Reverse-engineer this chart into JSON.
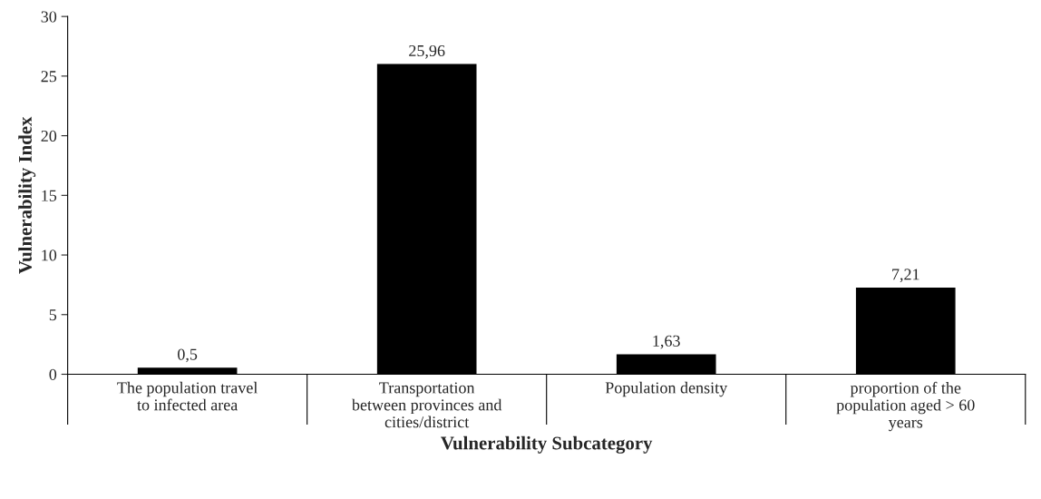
{
  "chart_data": {
    "type": "bar",
    "xlabel": "Vulnerability Subcategory",
    "ylabel": "Vulnerability Index",
    "categories": [
      "The population travel\nto infected area",
      "Transportation\nbetween provinces and\ncities/district",
      "Population density",
      "proportion of the\npopulation aged > 60\nyears"
    ],
    "values": [
      0.5,
      25.96,
      1.63,
      7.21
    ],
    "value_labels": [
      "0,5",
      "25,96",
      "1,63",
      "7,21"
    ],
    "color": "#000000",
    "ylim": [
      0,
      30
    ],
    "yticks": [
      0,
      5,
      10,
      15,
      20,
      25,
      30
    ],
    "grid": false
  }
}
